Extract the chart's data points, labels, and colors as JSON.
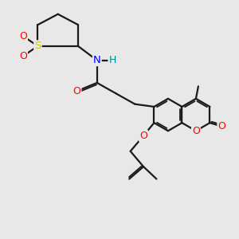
{
  "bg_color": "#e8e8e8",
  "bond_color": "#1a1a1a",
  "bond_width": 1.6,
  "atom_colors": {
    "O": "#ff0000",
    "S": "#cccc00",
    "N": "#0000ff",
    "H": "#008b8b",
    "C": "#1a1a1a"
  },
  "figsize": [
    3.0,
    3.0
  ],
  "dpi": 100
}
